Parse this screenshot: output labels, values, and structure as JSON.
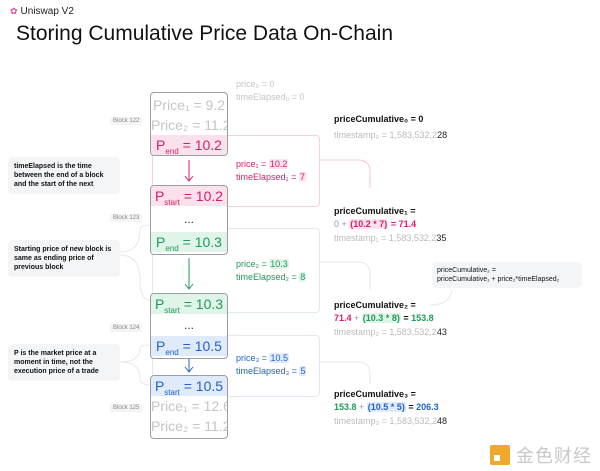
{
  "header": {
    "brand": "Uniswap V2",
    "title": "Storing Cumulative Price Data On-Chain"
  },
  "colors": {
    "pink": "#d81e6c",
    "green": "#1f9a5a",
    "blue": "#2462c8"
  },
  "blocks": [
    {
      "label": "Block 122",
      "rows": [
        "Price₁ = 9.2",
        "Price₂ = 11.2"
      ],
      "end": "= 10.2"
    },
    {
      "label": "Block 123",
      "start": "= 10.2",
      "mid": "...",
      "end": "= 10.3"
    },
    {
      "label": "Block 124",
      "start": "= 10.3",
      "mid": "...",
      "end": "= 10.5"
    },
    {
      "label": "Block 125",
      "start": "= 10.5",
      "rows": [
        "Price₁ = 12.6",
        "Price₂ = 11.2"
      ]
    }
  ],
  "p_labels": {
    "p": "P",
    "end": "end",
    "start": "start"
  },
  "initial": {
    "price": "price₀ = 0",
    "time": "timeElapsed₀ = 0"
  },
  "intervals": [
    {
      "price_label": "price₁ = ",
      "price": "10.2",
      "time_label": "timeElapsed₁ = ",
      "time": "7"
    },
    {
      "price_label": "price₂ = ",
      "price": "10.3",
      "time_label": "timeElapsed₂ = ",
      "time": "8"
    },
    {
      "price_label": "price₃ = ",
      "price": "10.5",
      "time_label": "timeElapsed₃ = ",
      "time": "5"
    }
  ],
  "notes": [
    "timeElapsed is the time between the end of a block and the start of the next",
    "Starting price of new block is same as ending price of previous block",
    "P is the market price at a moment in time, not the execution price of a trade"
  ],
  "cumulative": [
    {
      "label": "priceCumulative₀ = 0",
      "ts_prefix": "timestamp₀ = 1,583,532,2",
      "ts_suffix": "28"
    },
    {
      "label": "priceCumulative₁ =",
      "prev": "0",
      "op": " + ",
      "term": "(10.2 * 7)",
      "eq": " = ",
      "result": "71.4",
      "ts_prefix": "timestamp₁ = 1,583,532,2",
      "ts_suffix": "35"
    },
    {
      "label": "priceCumulative₂ =",
      "prev": "71.4",
      "op": " + ",
      "term": "(10.3 * 8)",
      "eq": " = ",
      "result": "153.8",
      "ts_prefix": "timestamp₂ = 1,583,532,2",
      "ts_suffix": "43"
    },
    {
      "label": "priceCumulative₃ =",
      "prev": "153.8",
      "op": " + ",
      "term": "(10.5 * 5)",
      "eq": " = ",
      "result": "206.3",
      "ts_prefix": "timestamp₃ = 1,583,532,2",
      "ts_suffix": "48"
    }
  ],
  "formula": {
    "line1": "priceCumulative₂ =",
    "line2": "priceCumulative₁ + price₂*timeElapsed₂"
  },
  "watermark": "金色财经"
}
